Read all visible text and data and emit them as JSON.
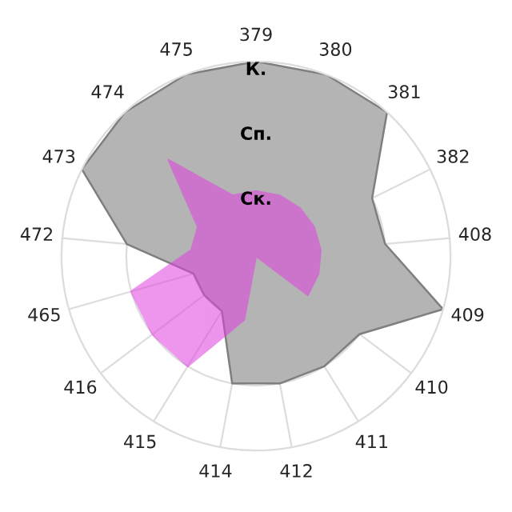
{
  "chart_data": {
    "type": "radar",
    "categories": [
      "379",
      "380",
      "381",
      "382",
      "408",
      "409",
      "410",
      "411",
      "412",
      "414",
      "415",
      "416",
      "465",
      "472",
      "473",
      "474",
      "475"
    ],
    "series": [
      {
        "color": "#b4b4b4",
        "values": [
          3,
          3,
          3,
          2,
          2,
          3,
          2,
          2,
          2,
          2,
          1,
          1,
          1,
          2,
          3,
          3,
          3
        ]
      },
      {
        "color": "#e040e0",
        "values": [
          1,
          1,
          1,
          1,
          1,
          1,
          1,
          0,
          0,
          1,
          2,
          2,
          2,
          1,
          1,
          2,
          1
        ]
      }
    ],
    "ylim": [
      0,
      3
    ],
    "yticks": [
      {
        "value": 1,
        "label": "Ск."
      },
      {
        "value": 2,
        "label": "Сп."
      },
      {
        "value": 3,
        "label": "К."
      }
    ],
    "grid": true
  }
}
